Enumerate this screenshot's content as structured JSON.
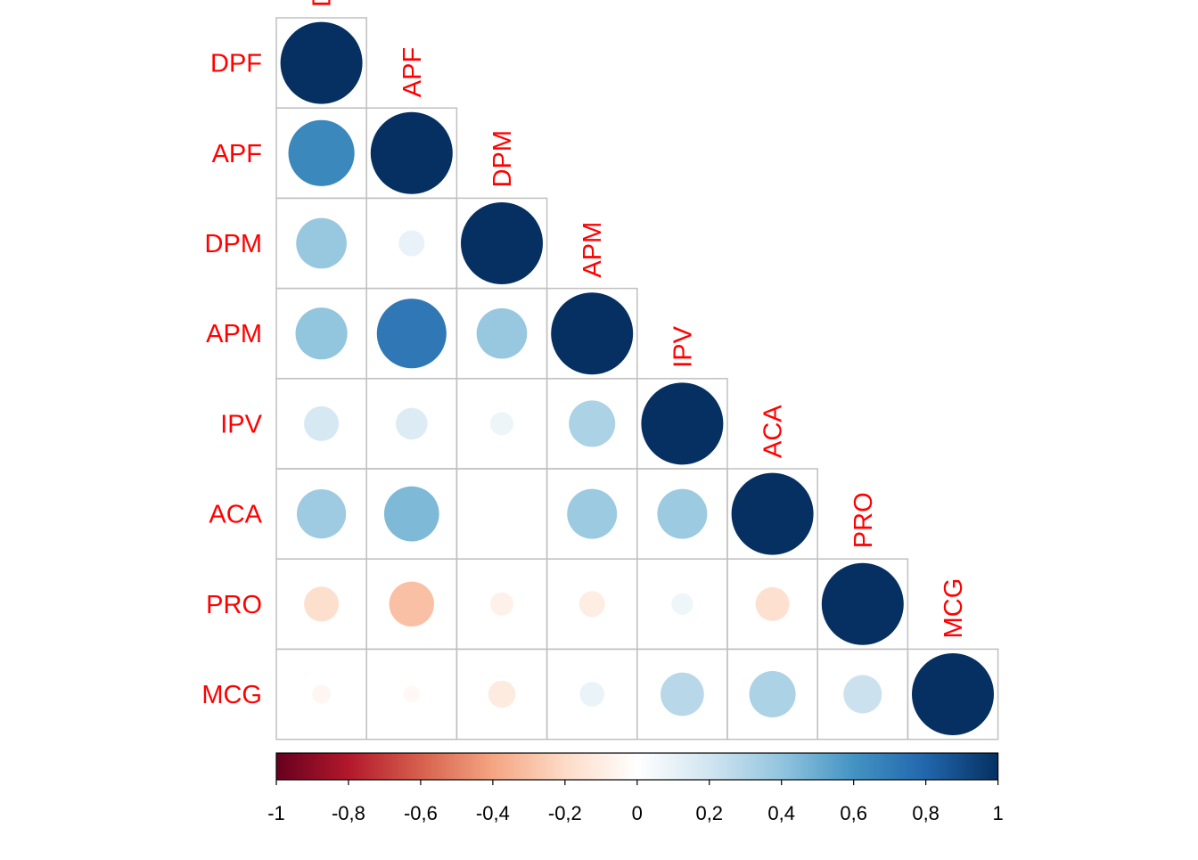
{
  "chart_data": {
    "type": "heatmap",
    "variables": [
      "DPF",
      "APF",
      "DPM",
      "APM",
      "IPV",
      "ACA",
      "PRO",
      "MCG"
    ],
    "row_labels": [
      "DPF",
      "APF",
      "DPM",
      "APM",
      "IPV",
      "ACA",
      "PRO",
      "MCG"
    ],
    "col_labels": [
      "DPF",
      "APF",
      "DPM",
      "APM",
      "IPV",
      "ACA",
      "PRO",
      "MCG"
    ],
    "matrix_lower": [
      [
        1.0
      ],
      [
        0.65,
        1.0
      ],
      [
        0.38,
        0.1,
        1.0
      ],
      [
        0.4,
        0.72,
        0.38,
        1.0
      ],
      [
        0.18,
        0.15,
        0.08,
        0.32,
        1.0
      ],
      [
        0.36,
        0.45,
        0.0,
        0.37,
        0.37,
        1.0
      ],
      [
        -0.18,
        -0.3,
        -0.08,
        -0.1,
        0.07,
        -0.17,
        1.0
      ],
      [
        -0.05,
        -0.04,
        -0.11,
        0.09,
        0.28,
        0.32,
        0.22,
        1.0
      ]
    ],
    "color_scale": {
      "min": -1,
      "max": 1,
      "ticks": [
        "-1",
        "-0,8",
        "-0,6",
        "-0,4",
        "-0,2",
        "0",
        "0,2",
        "0,4",
        "0,6",
        "0,8",
        "1"
      ],
      "stops": [
        "#67001F",
        "#B2182B",
        "#D6604D",
        "#F4A582",
        "#FDDBC7",
        "#FFFFFF",
        "#D1E5F0",
        "#92C5DE",
        "#4393C3",
        "#2166AC",
        "#053061"
      ]
    },
    "label_color": "#FF0000",
    "grid_color": "#C0C0C0",
    "legend_position": "bottom",
    "title": "",
    "xlabel": "",
    "ylabel": ""
  }
}
